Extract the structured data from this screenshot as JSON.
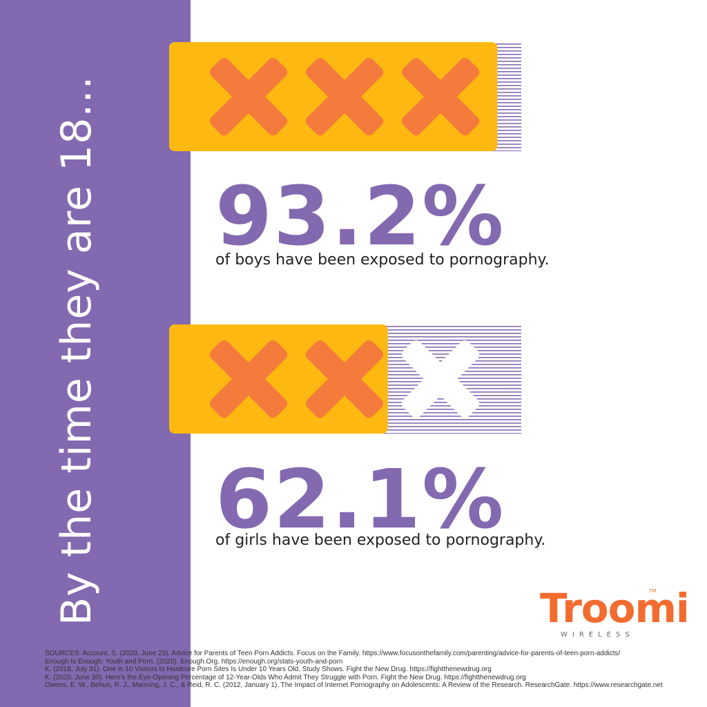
{
  "side_title": "By the time they are 18...",
  "colors": {
    "purple": "#8369B0",
    "bar_fill": "#FDB812",
    "x_mark": "#F47B3C",
    "stripe": "#8369B0",
    "logo": "#F26C2F"
  },
  "chart_data": {
    "type": "bar",
    "categories": [
      "boys",
      "girls"
    ],
    "values": [
      93.2,
      62.1
    ],
    "marks_per_bar": 3,
    "ylim": [
      0,
      100
    ],
    "stats": [
      {
        "value_label": "93.2%",
        "caption": "of boys have been exposed to pornography."
      },
      {
        "value_label": "62.1%",
        "caption": "of girls have been exposed to pornography."
      }
    ]
  },
  "logo": {
    "name": "Troomi",
    "tm": "TM",
    "sub": "WIRELESS"
  },
  "sources": [
    "SOURCES: Account, S. (2020, June 23). Advice for Parents of Teen Porn Addicts. Focus on the Family. https://www.focusonthefamily.com/parenting/advice-for-parents-of-teen-porn-addicts/",
    "Enough Is Enough: Youth and Porn. (2020). Enough.Org. https://enough.org/stats-youth-and-porn",
    "K. (2018, July 31). One in 10 Visitors to Hardcore Porn Sites Is Under 10 Years Old, Study Shows. Fight the New Drug. https://fightthenewdrug.org",
    "K. (2020, June 30). Here's the Eye-Opening Percentage of 12-Year-Olds Who Admit They Struggle with Porn. Fight the New Drug. https://fightthenewdrug.org",
    "Owens, E. W., Behun, R. J., Manning, J. C., & Reid, R. C. (2012, January 1). The Impact of Internet Pornography on Adolescents: A Review of the Research. ResearchGate. https://www.researchgate.net"
  ]
}
